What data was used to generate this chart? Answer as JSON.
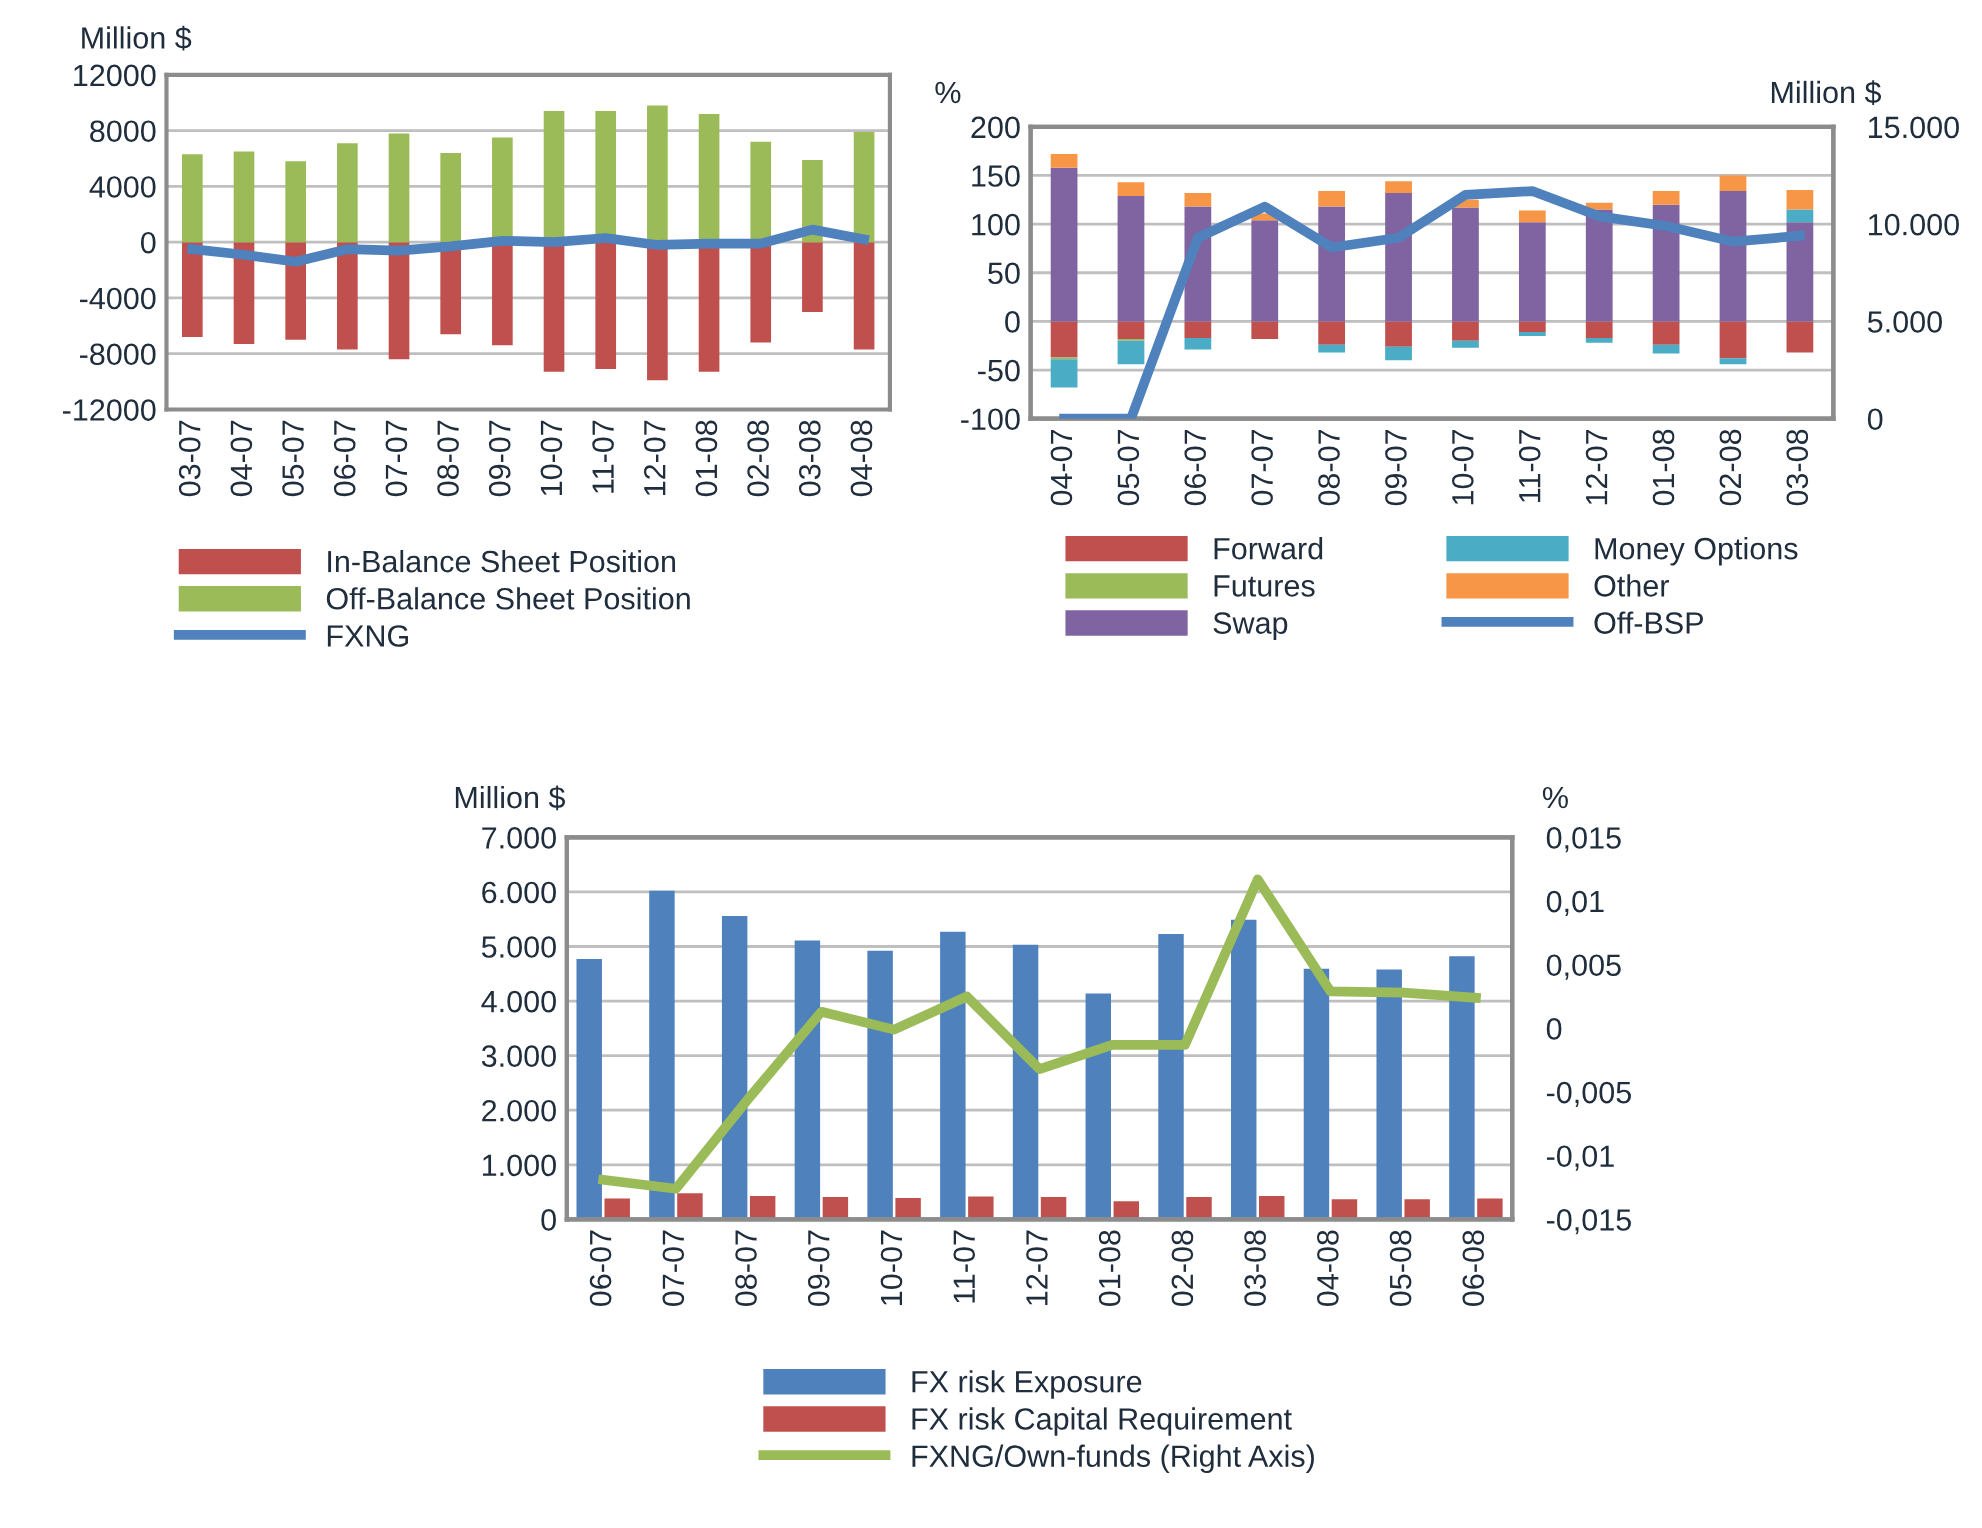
{
  "chart_data": [
    {
      "type": "bar",
      "stacked": true,
      "ylabel": "Million $",
      "grid": "y",
      "legend": "bottom",
      "categories": [
        "03-07",
        "04-07",
        "05-07",
        "06-07",
        "07-07",
        "08-07",
        "09-07",
        "10-07",
        "11-07",
        "12-07",
        "01-08",
        "02-08",
        "03-08",
        "04-08"
      ],
      "ylim": [
        -12000,
        12000
      ],
      "yticks": [
        -12000,
        -8000,
        -4000,
        0,
        4000,
        8000,
        12000
      ],
      "series": [
        {
          "name": "In-Balance Sheet Position",
          "color": "#c0504d",
          "values": [
            -6800,
            -7300,
            -7000,
            -7700,
            -8400,
            -6600,
            -7400,
            -9300,
            -9100,
            -9900,
            -9300,
            -7200,
            -5000,
            -7700
          ]
        },
        {
          "name": "Off-Balance Sheet Position",
          "color": "#9bbb59",
          "values": [
            6300,
            6500,
            5800,
            7100,
            7800,
            6400,
            7500,
            9400,
            9400,
            9800,
            9200,
            7200,
            5900,
            7900
          ]
        },
        {
          "name": "FXNG",
          "type": "line",
          "color": "#4f81bd",
          "values": [
            -500,
            -900,
            -1400,
            -500,
            -600,
            -300,
            100,
            0,
            300,
            -200,
            -100,
            -100,
            900,
            200
          ]
        }
      ]
    },
    {
      "type": "bar",
      "stacked": true,
      "ylabel": "%",
      "y2label": "Million $",
      "grid": "y",
      "legend": "bottom",
      "categories": [
        "04-07",
        "05-07",
        "06-07",
        "07-07",
        "08-07",
        "09-07",
        "10-07",
        "11-07",
        "12-07",
        "01-08",
        "02-08",
        "03-08"
      ],
      "ylim": [
        -100,
        200
      ],
      "yticks": [
        -100,
        -50,
        0,
        50,
        100,
        150,
        200
      ],
      "y2lim": [
        0,
        15000
      ],
      "y2ticks": [
        {
          "value": 0,
          "label": "0"
        },
        {
          "value": 5000,
          "label": "5.000"
        },
        {
          "value": 10000,
          "label": "10.000"
        },
        {
          "value": 15000,
          "label": "15.000"
        }
      ],
      "series": [
        {
          "name": "Forward",
          "color": "#c0504d",
          "values": [
            -37,
            -18,
            -17,
            -18,
            -24,
            -26,
            -20,
            -11,
            -17,
            -24,
            -38,
            -32
          ]
        },
        {
          "name": "Futures",
          "color": "#9bbb59",
          "values": [
            -2,
            -2,
            0,
            0,
            0,
            0,
            0,
            0,
            0,
            0,
            0,
            0
          ]
        },
        {
          "name": "Swap",
          "color": "#8064a2",
          "values": [
            158,
            129,
            118,
            104,
            118,
            132,
            117,
            102,
            115,
            120,
            134,
            102
          ]
        },
        {
          "name": "Money Options",
          "color": "#4bacc6",
          "values": [
            -29,
            -24,
            -12,
            0,
            -8,
            -14,
            -7,
            -4,
            -5,
            -9,
            -6,
            13
          ]
        },
        {
          "name": "Other",
          "color": "#f79646",
          "values": [
            14,
            14,
            14,
            7,
            16,
            12,
            8,
            12,
            7,
            14,
            16,
            20
          ]
        },
        {
          "name": "Off-BSP",
          "type": "line",
          "axis": "y2",
          "color": "#4f81bd",
          "values": [
            0,
            0,
            9300,
            10900,
            8800,
            9300,
            11500,
            11700,
            10400,
            9900,
            9100,
            9400
          ]
        }
      ]
    },
    {
      "type": "bar",
      "ylabel": "Million $",
      "y2label": "%",
      "grid": "y",
      "legend": "bottom",
      "categories": [
        "06-07",
        "07-07",
        "08-07",
        "09-07",
        "10-07",
        "11-07",
        "12-07",
        "01-08",
        "02-08",
        "03-08",
        "04-08",
        "05-08",
        "06-08"
      ],
      "ylim": [
        0,
        7000
      ],
      "yticks": [
        {
          "value": 0,
          "label": "0"
        },
        {
          "value": 1000,
          "label": "1.000"
        },
        {
          "value": 2000,
          "label": "2.000"
        },
        {
          "value": 3000,
          "label": "3.000"
        },
        {
          "value": 4000,
          "label": "4.000"
        },
        {
          "value": 5000,
          "label": "5.000"
        },
        {
          "value": 6000,
          "label": "6.000"
        },
        {
          "value": 7000,
          "label": "7.000"
        }
      ],
      "y2lim": [
        -0.015,
        0.015
      ],
      "y2ticks": [
        {
          "value": -0.015,
          "label": "-0,015"
        },
        {
          "value": -0.01,
          "label": "-0,01"
        },
        {
          "value": -0.005,
          "label": "-0,005"
        },
        {
          "value": 0,
          "label": "0"
        },
        {
          "value": 0.005,
          "label": "0,005"
        },
        {
          "value": 0.01,
          "label": "0,01"
        },
        {
          "value": 0.015,
          "label": "0,015"
        }
      ],
      "series": [
        {
          "name": "FX risk Exposure",
          "color": "#4f81bd",
          "values": [
            4770,
            6020,
            5560,
            5110,
            4920,
            5270,
            5030,
            4140,
            5230,
            5490,
            4590,
            4580,
            4820
          ]
        },
        {
          "name": "FX risk Capital Requirement",
          "color": "#c0504d",
          "values": [
            380,
            480,
            430,
            410,
            390,
            420,
            410,
            330,
            410,
            430,
            370,
            370,
            380
          ]
        },
        {
          "name": "FXNG/Own-funds (Right Axis)",
          "type": "line",
          "axis": "y2",
          "color": "#9bbb59",
          "values": [
            -0.0119,
            -0.0126,
            -0.0055,
            0.0013,
            -0.0001,
            0.0025,
            -0.0032,
            -0.0013,
            -0.0013,
            0.0117,
            0.0029,
            0.0028,
            0.0024
          ]
        }
      ]
    }
  ]
}
